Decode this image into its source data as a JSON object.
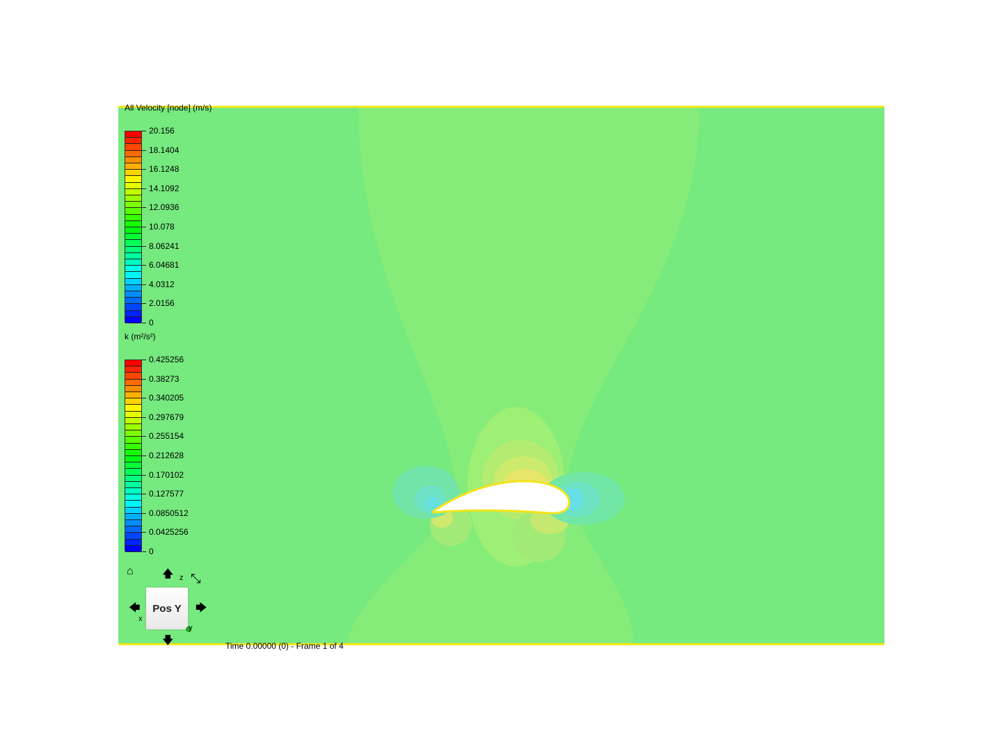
{
  "legends": [
    {
      "title": "All Velocity [node] (m/s)",
      "ticks": [
        "20.156",
        "18.1404",
        "16.1248",
        "14.1092",
        "12.0936",
        "10.078",
        "8.06241",
        "6.04681",
        "4.0312",
        "2.0156",
        "0"
      ],
      "range": [
        0,
        20.156
      ],
      "bands": 30
    },
    {
      "title": "k (m²/s²)",
      "ticks": [
        "0.425256",
        "0.38273",
        "0.340205",
        "0.297679",
        "0.255154",
        "0.212628",
        "0.170102",
        "0.127577",
        "0.0850512",
        "0.0425256",
        "0"
      ],
      "range": [
        0,
        0.425256
      ],
      "bands": 30
    }
  ],
  "view_cube": {
    "face_label": "Pos Y",
    "axis_x": "x",
    "axis_y": "y",
    "axis_z": "z"
  },
  "status": {
    "time_text": "Time 0.00000 (0) - Frame 1 of 4"
  },
  "colors": {
    "field_background": "#76e97f",
    "domain_edge": "#f3e81c",
    "airfoil": "#ffffff"
  },
  "icons": [
    "home-icon",
    "rotate-up-icon",
    "rotate-down-icon",
    "rotate-left-icon",
    "rotate-right-icon",
    "roll-icon"
  ]
}
